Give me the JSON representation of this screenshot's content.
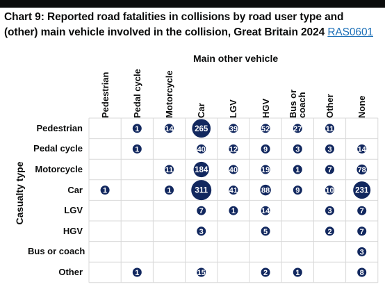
{
  "header": {
    "title": "Chart 9: Reported road fatalities in collisions by road user type and (other) main vehicle involved in the collision, Great Britain 2024",
    "link_text": "RAS0601"
  },
  "chart_data": {
    "type": "bubble-matrix",
    "title": "Chart 9: Reported road fatalities in collisions by road user type and (other) main vehicle involved in the collision, Great Britain 2024",
    "xlabel": "Main other vehicle",
    "ylabel": "Casualty type",
    "columns": [
      "Pedestrian",
      "Pedal cycle",
      "Motorcycle",
      "Car",
      "LGV",
      "HGV",
      "Bus or\ncoach",
      "Other",
      "None"
    ],
    "rows": [
      "Pedestrian",
      "Pedal cycle",
      "Motorcycle",
      "Car",
      "LGV",
      "HGV",
      "Bus or coach",
      "Other"
    ],
    "values": [
      [
        null,
        1,
        14,
        265,
        39,
        52,
        27,
        11,
        null
      ],
      [
        null,
        1,
        null,
        40,
        12,
        9,
        3,
        3,
        14
      ],
      [
        null,
        null,
        11,
        184,
        40,
        19,
        1,
        7,
        78
      ],
      [
        1,
        null,
        1,
        311,
        41,
        88,
        9,
        10,
        231
      ],
      [
        null,
        null,
        null,
        7,
        1,
        14,
        null,
        3,
        7
      ],
      [
        null,
        null,
        null,
        3,
        null,
        5,
        null,
        2,
        7
      ],
      [
        null,
        null,
        null,
        null,
        null,
        null,
        null,
        null,
        3
      ],
      [
        null,
        1,
        null,
        15,
        null,
        2,
        1,
        null,
        8
      ]
    ],
    "grid": true,
    "colors": {
      "bubble": "#12285f",
      "label": "#ffffff",
      "grid": "#d9d9d9"
    }
  }
}
